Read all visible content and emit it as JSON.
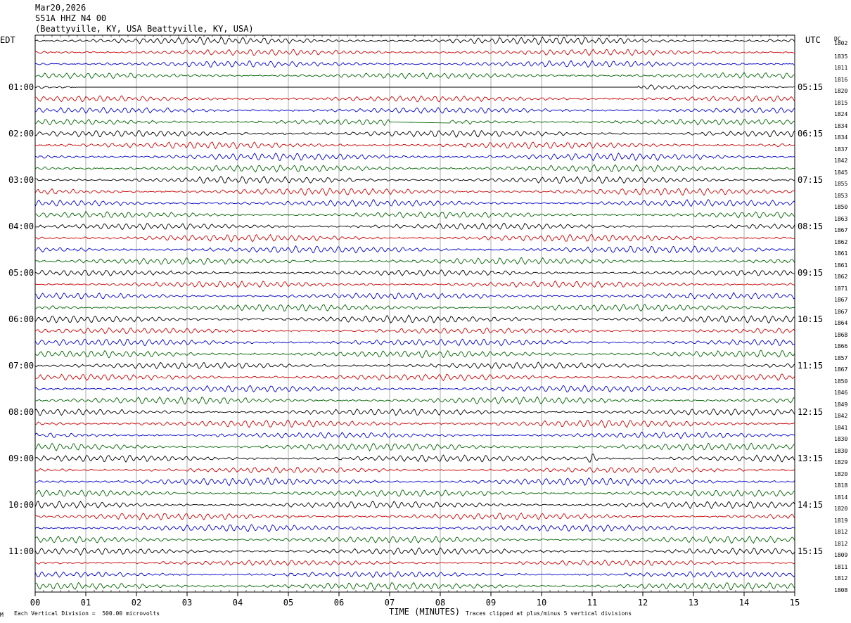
{
  "header": {
    "date": "Mar20,2026",
    "station": "S51A HHZ N4 00",
    "location": "(Beattyville, KY, USA Beattyville, KY, USA)"
  },
  "left_tz": "EDT",
  "right_tz": "UTC",
  "dc_header": "DC",
  "colors": {
    "trace_cycle": [
      "#000000",
      "#cc0000",
      "#0000cc",
      "#006400"
    ],
    "grid": "#000000"
  },
  "chart_data": {
    "type": "helicorder",
    "title": "Mar20,2026 S51A HHZ N4 00 (Beattyville, KY, USA Beattyville, KY, USA)",
    "xlabel": "TIME (MINUTES)",
    "x_range": [
      0,
      15
    ],
    "x_ticks": [
      "00",
      "01",
      "02",
      "03",
      "04",
      "05",
      "06",
      "07",
      "08",
      "09",
      "10",
      "11",
      "12",
      "13",
      "14",
      "15"
    ],
    "left_hour_labels": [
      "01:00",
      "02:00",
      "03:00",
      "04:00",
      "05:00",
      "06:00",
      "07:00",
      "08:00",
      "09:00",
      "10:00",
      "11:00"
    ],
    "right_hour_labels": [
      "05:15",
      "06:15",
      "07:15",
      "08:15",
      "09:15",
      "10:15",
      "11:15",
      "12:15",
      "13:15",
      "14:15",
      "15:15"
    ],
    "row_dc_offsets": [
      1802,
      1835,
      1811,
      1816,
      1820,
      1815,
      1824,
      1834,
      1834,
      1837,
      1842,
      1845,
      1855,
      1853,
      1850,
      1863,
      1867,
      1862,
      1861,
      1861,
      1862,
      1871,
      1867,
      1867,
      1864,
      1868,
      1866,
      1857,
      1867,
      1850,
      1846,
      1849,
      1842,
      1841,
      1830,
      1830,
      1829,
      1820,
      1818,
      1814,
      1820,
      1819,
      1812,
      1812,
      1809,
      1811,
      1812,
      1808
    ],
    "rows_per_hour": 4,
    "minutes_per_row": 15,
    "scale_note": "Each Vertical Division =  500.00 microvolts",
    "clip_note": "Traces clipped at plus/minus 5 vertical divisions",
    "gaps": [
      {
        "row": 4,
        "from_min": 0.8,
        "to_min": 11.9
      },
      {
        "row": 7,
        "from_min": 7.0,
        "to_min": 8.2
      }
    ],
    "events": [
      {
        "row": 36,
        "at_min": 11.0,
        "note": "burst"
      }
    ]
  },
  "footer_left_mark": "M"
}
